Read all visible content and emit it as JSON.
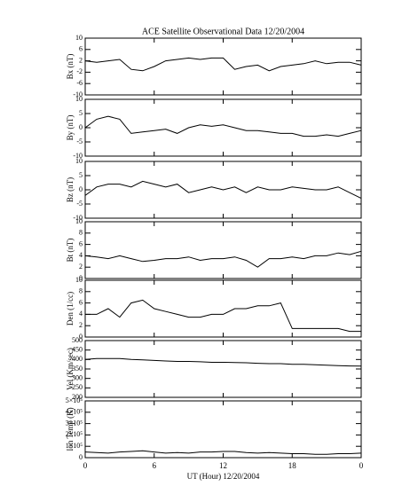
{
  "chart_data": [
    {
      "type": "line",
      "title": "ACE Satellite Observational Data   12/20/2004",
      "ylabel": "Bx (nT)",
      "x": [
        0,
        1,
        2,
        3,
        4,
        5,
        6,
        7,
        8,
        9,
        10,
        11,
        12,
        13,
        14,
        15,
        16,
        17,
        18,
        19,
        20,
        21,
        22,
        23,
        24
      ],
      "values": [
        2,
        1.5,
        2,
        2.5,
        -1,
        -1.5,
        0,
        2,
        2.5,
        3,
        2.5,
        3,
        3,
        -1,
        0,
        0.5,
        -1.5,
        0,
        0.5,
        1,
        2,
        1,
        1.5,
        1.5,
        0.5
      ],
      "color": "#000000",
      "xlim": [
        0,
        24
      ],
      "xticks": [
        0,
        6,
        12,
        18,
        {
          "value": 24,
          "label": "0"
        }
      ],
      "ylim": [
        -10,
        10
      ],
      "yticks": [
        -10,
        -6,
        -2,
        2,
        6,
        10
      ]
    },
    {
      "type": "line",
      "ylabel": "By (nT)",
      "x": [
        0,
        1,
        2,
        3,
        4,
        5,
        6,
        7,
        8,
        9,
        10,
        11,
        12,
        13,
        14,
        15,
        16,
        17,
        18,
        19,
        20,
        21,
        22,
        23,
        24
      ],
      "values": [
        0,
        3,
        4,
        3,
        -2,
        -1.5,
        -1,
        -0.5,
        -2,
        0,
        1,
        0.5,
        1,
        0,
        -1,
        -1,
        -1.5,
        -2,
        -2,
        -3,
        -3,
        -2.5,
        -3,
        -2,
        -1
      ],
      "color": "#000000",
      "xlim": [
        0,
        24
      ],
      "xticks": [
        0,
        6,
        12,
        18,
        {
          "value": 24,
          "label": "0"
        }
      ],
      "ylim": [
        -10,
        10
      ],
      "yticks": [
        -10,
        -5,
        0,
        5,
        10
      ]
    },
    {
      "type": "line",
      "ylabel": "Bz (nT)",
      "x": [
        0,
        1,
        2,
        3,
        4,
        5,
        6,
        7,
        8,
        9,
        10,
        11,
        12,
        13,
        14,
        15,
        16,
        17,
        18,
        19,
        20,
        21,
        22,
        23,
        24
      ],
      "values": [
        -2,
        1,
        2,
        2,
        1,
        3,
        2,
        1,
        2,
        -1,
        0,
        1,
        0,
        1,
        -1,
        1,
        0,
        0,
        1,
        0.5,
        0,
        0,
        1,
        -1,
        -3
      ],
      "color": "#000000",
      "xlim": [
        0,
        24
      ],
      "xticks": [
        0,
        6,
        12,
        18,
        {
          "value": 24,
          "label": "0"
        }
      ],
      "ylim": [
        -10,
        10
      ],
      "yticks": [
        -10,
        -5,
        0,
        5,
        10
      ]
    },
    {
      "type": "line",
      "ylabel": "Bt (nT)",
      "x": [
        0,
        1,
        2,
        3,
        4,
        5,
        6,
        7,
        8,
        9,
        10,
        11,
        12,
        13,
        14,
        15,
        16,
        17,
        18,
        19,
        20,
        21,
        22,
        23,
        24
      ],
      "values": [
        4,
        3.8,
        3.5,
        4,
        3.5,
        3,
        3.2,
        3.5,
        3.5,
        3.8,
        3.2,
        3.5,
        3.5,
        3.8,
        3.2,
        2,
        3.5,
        3.5,
        3.8,
        3.5,
        4,
        4,
        4.5,
        4.2,
        4.8
      ],
      "color": "#000000",
      "xlim": [
        0,
        24
      ],
      "xticks": [
        0,
        6,
        12,
        18,
        {
          "value": 24,
          "label": "0"
        }
      ],
      "ylim": [
        0,
        10
      ],
      "yticks": [
        0,
        2,
        4,
        6,
        8,
        10
      ]
    },
    {
      "type": "line",
      "ylabel": "Den (1/cc)",
      "x": [
        0,
        1,
        2,
        3,
        4,
        5,
        6,
        7,
        8,
        9,
        10,
        11,
        12,
        13,
        14,
        15,
        16,
        17,
        18,
        19,
        20,
        21,
        22,
        23,
        24
      ],
      "values": [
        4,
        4,
        5,
        3.5,
        6,
        6.5,
        5,
        4.5,
        4,
        3.5,
        3.5,
        4,
        4,
        5,
        5,
        5.5,
        5.5,
        6,
        1.5,
        1.5,
        1.5,
        1.5,
        1.5,
        1,
        1
      ],
      "color": "#000000",
      "xlim": [
        0,
        24
      ],
      "xticks": [
        0,
        6,
        12,
        18,
        {
          "value": 24,
          "label": "0"
        }
      ],
      "ylim": [
        0,
        10
      ],
      "yticks": [
        0,
        2,
        4,
        6,
        8,
        10
      ]
    },
    {
      "type": "line",
      "ylabel": "Vel (Km/sec)",
      "x": [
        0,
        1,
        2,
        3,
        4,
        5,
        6,
        7,
        8,
        9,
        10,
        11,
        12,
        13,
        14,
        15,
        16,
        17,
        18,
        19,
        20,
        21,
        22,
        23,
        24
      ],
      "values": [
        400,
        405,
        405,
        405,
        400,
        398,
        395,
        392,
        390,
        390,
        388,
        385,
        385,
        384,
        383,
        380,
        378,
        378,
        375,
        375,
        372,
        370,
        368,
        366,
        365
      ],
      "color": "#000000",
      "xlim": [
        0,
        24
      ],
      "xticks": [
        0,
        6,
        12,
        18,
        {
          "value": 24,
          "label": "0"
        }
      ],
      "ylim": [
        200,
        500
      ],
      "yticks": [
        200,
        250,
        300,
        350,
        400,
        450,
        500
      ]
    },
    {
      "type": "line",
      "ylabel": "Ion Temp (K)",
      "xlabel": "UT (Hour)  12/20/2004",
      "x": [
        0,
        1,
        2,
        3,
        4,
        5,
        6,
        7,
        8,
        9,
        10,
        11,
        12,
        13,
        14,
        15,
        16,
        17,
        18,
        19,
        20,
        21,
        22,
        23,
        24
      ],
      "values": [
        50000,
        45000,
        40000,
        50000,
        55000,
        60000,
        50000,
        40000,
        45000,
        40000,
        50000,
        50000,
        55000,
        55000,
        45000,
        40000,
        45000,
        40000,
        35000,
        35000,
        30000,
        30000,
        35000,
        35000,
        40000
      ],
      "color": "#000000",
      "xlim": [
        0,
        24
      ],
      "xticks": [
        0,
        6,
        12,
        18,
        {
          "value": 24,
          "label": "0"
        }
      ],
      "ylim": [
        0,
        500000
      ],
      "yticks": [
        0,
        {
          "value": 100000,
          "label": "1×10⁵"
        },
        {
          "value": 200000,
          "label": "2×10⁵"
        },
        {
          "value": 300000,
          "label": "3×10⁵"
        },
        {
          "value": 400000,
          "label": "4×10⁵"
        },
        {
          "value": 500000,
          "label": "5×10⁵"
        }
      ]
    }
  ]
}
